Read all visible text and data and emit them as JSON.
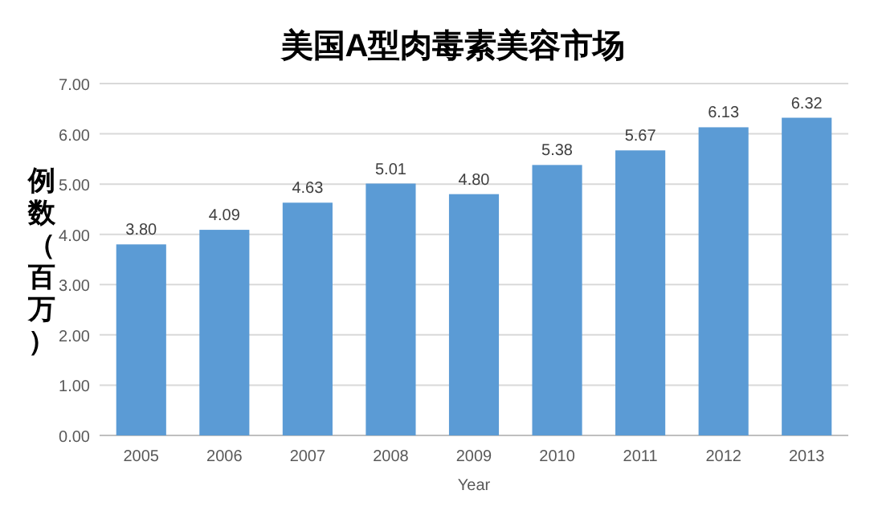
{
  "chart_data": {
    "type": "bar",
    "title": "美国A型肉毒素美容市场",
    "xlabel": "Year",
    "ylabel": "例数（百万）",
    "categories": [
      "2005",
      "2006",
      "2007",
      "2008",
      "2009",
      "2010",
      "2011",
      "2012",
      "2013"
    ],
    "values": [
      3.8,
      4.09,
      4.63,
      5.01,
      4.8,
      5.38,
      5.67,
      6.13,
      6.32
    ],
    "value_labels": [
      "3.80",
      "4.09",
      "4.63",
      "5.01",
      "4.80",
      "5.38",
      "5.67",
      "6.13",
      "6.32"
    ],
    "color": "#5b9bd5",
    "ylim": [
      0,
      7
    ],
    "yticks": [
      {
        "value": 0,
        "label": "0.00"
      },
      {
        "value": 1,
        "label": "1.00"
      },
      {
        "value": 2,
        "label": "2.00"
      },
      {
        "value": 3,
        "label": "3.00"
      },
      {
        "value": 4,
        "label": "4.00"
      },
      {
        "value": 5,
        "label": "5.00"
      },
      {
        "value": 6,
        "label": "6.00"
      },
      {
        "value": 7,
        "label": "7.00"
      }
    ],
    "grid": "y"
  }
}
